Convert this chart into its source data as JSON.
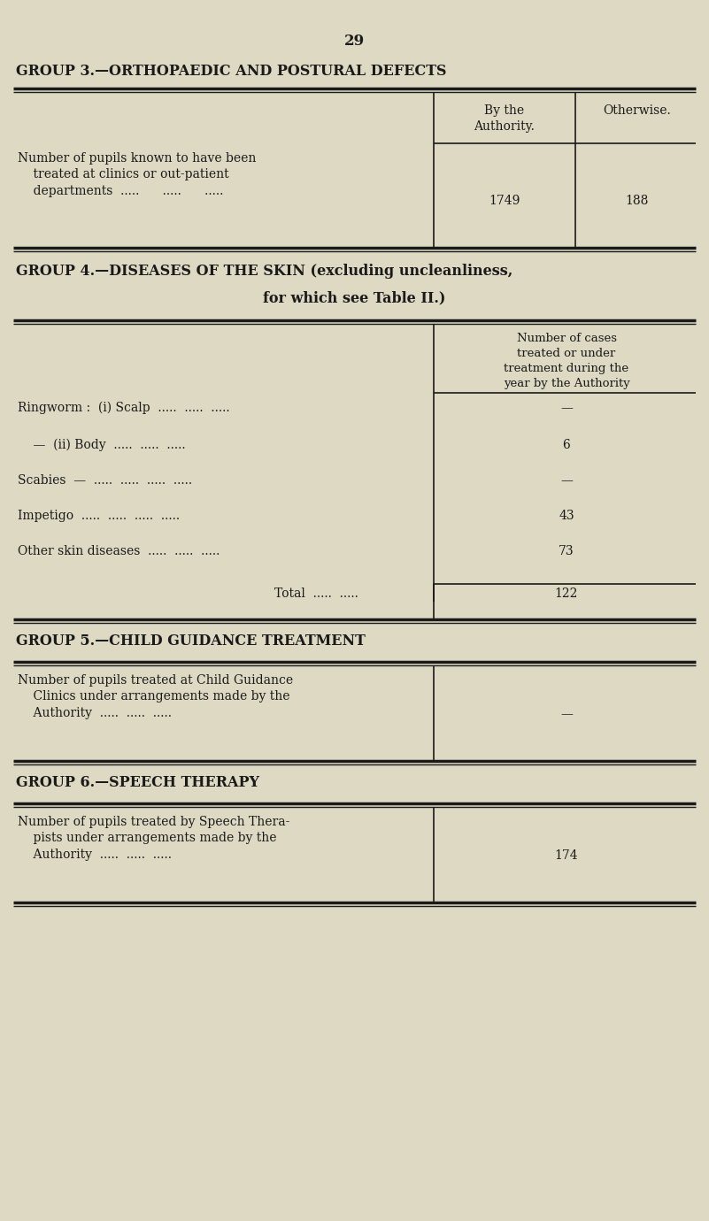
{
  "page_number": "29",
  "bg_color": "#ddd9c3",
  "text_color": "#1a1a1a",
  "group3_title": "GROUP 3.—ORTHOPAEDIC AND POSTURAL DEFECTS",
  "group3_col1": "By the\nAuthority.",
  "group3_col2": "Otherwise.",
  "group3_val1": "1749",
  "group3_val2": "188",
  "group4_title": "GROUP 4.—DISEASES OF THE SKIN (excluding uncleanliness,",
  "group4_subtitle": "for which see Table II.)",
  "group4_col_header": "Number of cases\ntreated or under\ntreatment during the\nyear by the Authority",
  "group4_rows": [
    {
      "label": "Ringworm :  (i) Scalp  .....  .....  .....",
      "value": "—"
    },
    {
      "label": "    —  (ii) Body  .....  .....  .....",
      "value": "6"
    },
    {
      "label": "Scabies  —  .....  .....  .....  .....",
      "value": "—"
    },
    {
      "label": "Impetigo  .....  .....  .....  .....",
      "value": "43"
    },
    {
      "label": "Other skin diseases  .....  .....  .....",
      "value": "73"
    }
  ],
  "group4_total_label": "Total  .....  .....",
  "group4_total_value": "122",
  "group5_title": "GROUP 5.—CHILD GUIDANCE TREATMENT",
  "group5_row_label": "Number of pupils treated at Child Guidance\n    Clinics under arrangements made by the\n    Authority  .....  .....  .....",
  "group5_value": "—",
  "group6_title": "GROUP 6.—SPEECH THERAPY",
  "group6_row_label": "Number of pupils treated by Speech Thera-\n    pists under arrangements made by the\n    Authority  .....  .....  .....",
  "group6_value": "174",
  "figw": 8.01,
  "figh": 13.8,
  "dpi": 100
}
